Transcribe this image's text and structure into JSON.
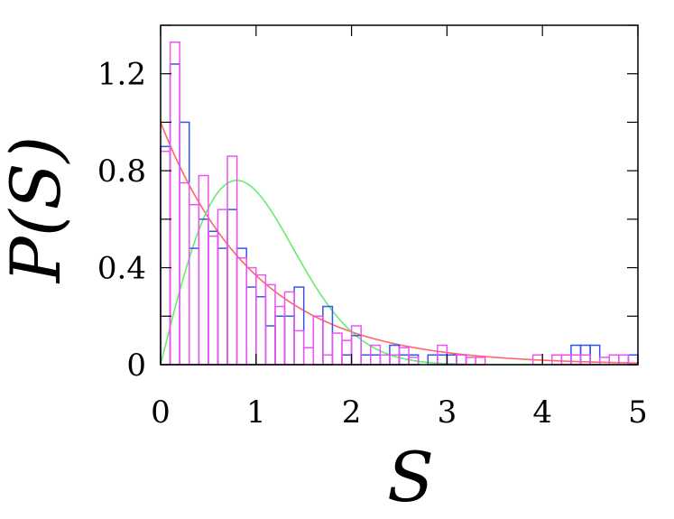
{
  "chart_data": {
    "type": "line",
    "xlabel": "S",
    "ylabel": "P(S)",
    "xlim": [
      0,
      5
    ],
    "ylim": [
      0,
      1.4
    ],
    "xticks": [
      "0",
      "1",
      "2",
      "3",
      "4",
      "5"
    ],
    "yticks": [
      "0",
      "0.4",
      "0.8",
      "1.2"
    ],
    "xtick_values": [
      0,
      1,
      2,
      3,
      4,
      5
    ],
    "ytick_values": [
      0,
      0.4,
      0.8,
      1.2
    ],
    "grid": false,
    "histograms": [
      {
        "color": "#3355ee",
        "bin_width": 0.1,
        "values": [
          0.9,
          1.24,
          1.0,
          0.48,
          0.6,
          0.55,
          0.48,
          0.64,
          0.48,
          0.32,
          0.28,
          0.16,
          0.2,
          0.2,
          0.32,
          0.0,
          0.2,
          0.24,
          0.0,
          0.04,
          0.12,
          0.04,
          0.04,
          0.04,
          0.08,
          0.04,
          0.04,
          0.0,
          0.04,
          0.04,
          0.04,
          0.04,
          0.0,
          0.0,
          0.0,
          0.0,
          0.0,
          0.0,
          0.0,
          0.0,
          0.0,
          0.0,
          0.0,
          0.08,
          0.08,
          0.08,
          0.0,
          0.0,
          0.0,
          0.04
        ]
      },
      {
        "color": "#ee55ee",
        "bin_width": 0.1,
        "values": [
          0.88,
          1.33,
          0.75,
          0.66,
          0.78,
          0.53,
          0.64,
          0.86,
          0.44,
          0.4,
          0.37,
          0.33,
          0.24,
          0.3,
          0.14,
          0.07,
          0.2,
          0.04,
          0.13,
          0.1,
          0.16,
          0.0,
          0.08,
          0.04,
          0.04,
          0.07,
          0.03,
          0.0,
          0.0,
          0.08,
          0.0,
          0.04,
          0.03,
          0.03,
          0.0,
          0.0,
          0.0,
          0.0,
          0.0,
          0.04,
          0.0,
          0.04,
          0.04,
          0.04,
          0.04,
          0.0,
          0.03,
          0.04,
          0.04,
          0.0
        ]
      }
    ],
    "curves": [
      {
        "name": "exp(-S)",
        "color": "#ff6666"
      },
      {
        "name": "(pi/2) S exp(-pi S^2/4)",
        "color": "#66ee66"
      }
    ]
  }
}
